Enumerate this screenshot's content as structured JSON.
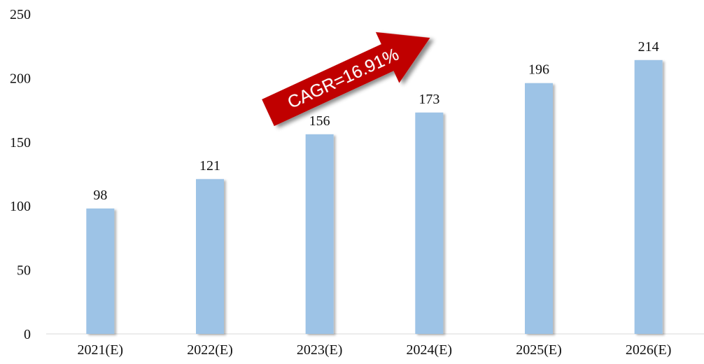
{
  "chart_data": {
    "type": "bar",
    "categories": [
      "2021(E)",
      "2022(E)",
      "2023(E)",
      "2024(E)",
      "2025(E)",
      "2026(E)"
    ],
    "values": [
      98,
      121,
      156,
      173,
      196,
      214
    ],
    "data_labels": [
      "98",
      "121",
      "156",
      "173",
      "196",
      "214"
    ],
    "ylim": [
      0,
      250
    ],
    "yticks": [
      "0",
      "50",
      "100",
      "150",
      "200",
      "250"
    ],
    "grid": false,
    "legend": "none",
    "annotation": "CAGR=16.91%",
    "colors": {
      "bar": "#9DC3E6",
      "arrow": "#C00000",
      "arrow_text": "#FFFFFF"
    }
  }
}
